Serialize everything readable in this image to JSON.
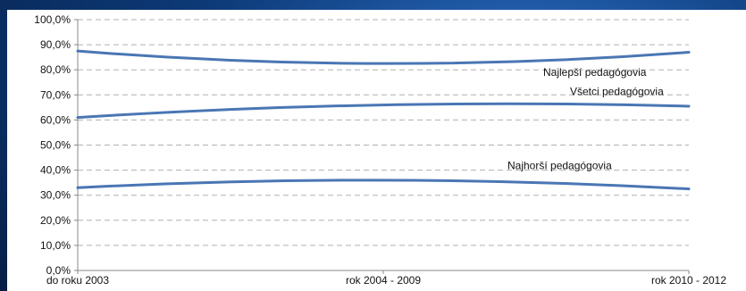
{
  "chart_data": {
    "type": "line",
    "categories": [
      "do roku 2003",
      "rok 2004 - 2009",
      "rok 2010 - 2012"
    ],
    "y_ticks": [
      "0,0%",
      "10,0%",
      "20,0%",
      "30,0%",
      "40,0%",
      "50,0%",
      "60,0%",
      "70,0%",
      "80,0%",
      "90,0%",
      "100,0%"
    ],
    "ylim": [
      0,
      100
    ],
    "grid": true,
    "series": [
      {
        "name": "Najlepší pedagógovia",
        "values": [
          87.5,
          82.5,
          87.0
        ]
      },
      {
        "name": "Všetci pedagógovia",
        "values": [
          61.0,
          66.0,
          65.5
        ]
      },
      {
        "name": "Najhorší pedagógovia",
        "values": [
          33.0,
          36.0,
          32.5
        ]
      }
    ],
    "colors": {
      "line": "#4a76b4",
      "grid": "#b0b0b0",
      "axis": "#888888"
    }
  }
}
